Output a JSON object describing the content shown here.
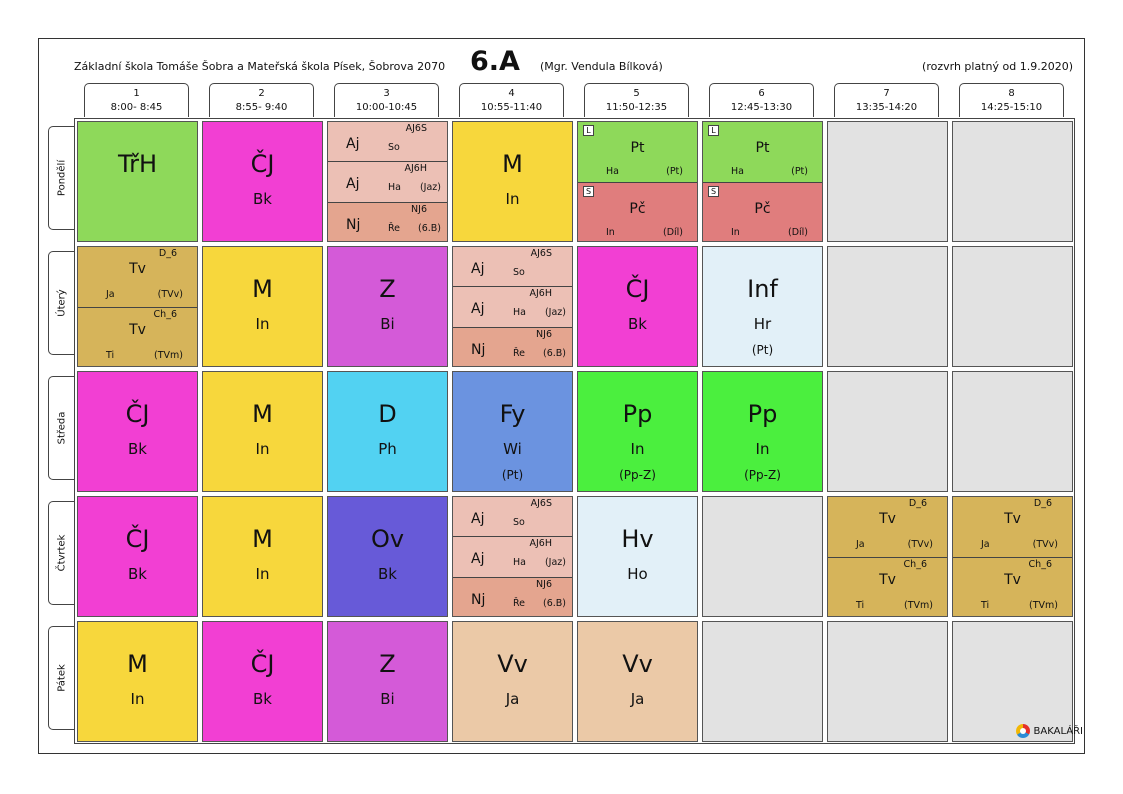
{
  "header": {
    "school": "Základní škola Tomáše Šobra a Mateřská škola Písek, Šobrova 2070",
    "class": "6.A",
    "teacher": "(Mgr. Vendula Bílková)",
    "valid": "(rozvrh platný od 1.9.2020)"
  },
  "periods": [
    {
      "num": "1",
      "time": "8:00- 8:45"
    },
    {
      "num": "2",
      "time": "8:55- 9:40"
    },
    {
      "num": "3",
      "time": "10:00-10:45"
    },
    {
      "num": "4",
      "time": "10:55-11:40"
    },
    {
      "num": "5",
      "time": "11:50-12:35"
    },
    {
      "num": "6",
      "time": "12:45-13:30"
    },
    {
      "num": "7",
      "time": "13:35-14:20"
    },
    {
      "num": "8",
      "time": "14:25-15:10"
    }
  ],
  "days": [
    "Pondělí",
    "Úterý",
    "Středa",
    "Čtvrtek",
    "Pátek"
  ],
  "lessons": [
    {
      "day": 0,
      "period": 0,
      "color": "#8ed95a",
      "subject": "TřH",
      "teacher": "",
      "room": ""
    },
    {
      "day": 0,
      "period": 1,
      "color": "#f23fd3",
      "subject": "ČJ",
      "teacher": "Bk",
      "room": ""
    },
    {
      "day": 0,
      "period": 2,
      "color": "#ecc0b5",
      "parts": [
        {
          "color": "#ecc0b5",
          "group": "AJ6S",
          "subject": "Aj",
          "teacher": "So",
          "room": ""
        },
        {
          "color": "#ecc0b5",
          "group": "AJ6H",
          "subject": "Aj",
          "teacher": "Ha",
          "room": "(Jaz)"
        },
        {
          "color": "#e4a58f",
          "group": "NJ6",
          "subject": "Nj",
          "teacher": "Ře",
          "room": "(6.B)"
        }
      ]
    },
    {
      "day": 0,
      "period": 3,
      "color": "#f7d73c",
      "subject": "M",
      "teacher": "In",
      "room": ""
    },
    {
      "day": 0,
      "period": 4,
      "color": "#8ed95a",
      "parts": [
        {
          "color": "#8ed95a",
          "box": "L",
          "group": "",
          "subject": "Pt",
          "teacher": "Ha",
          "room": "(Pt)"
        },
        {
          "color": "#e07d7d",
          "box": "S",
          "group": "",
          "subject": "Pč",
          "teacher": "In",
          "room": "(Díl)"
        }
      ]
    },
    {
      "day": 0,
      "period": 5,
      "color": "#8ed95a",
      "parts": [
        {
          "color": "#8ed95a",
          "box": "L",
          "group": "",
          "subject": "Pt",
          "teacher": "Ha",
          "room": "(Pt)"
        },
        {
          "color": "#e07d7d",
          "box": "S",
          "group": "",
          "subject": "Pč",
          "teacher": "In",
          "room": "(Díl)"
        }
      ]
    },
    {
      "day": 1,
      "period": 0,
      "color": "#d6b45a",
      "parts": [
        {
          "color": "#d6b45a",
          "group": "D_6",
          "subject": "Tv",
          "teacher": "Ja",
          "room": "(TVv)"
        },
        {
          "color": "#d6b45a",
          "group": "Ch_6",
          "subject": "Tv",
          "teacher": "Ti",
          "room": "(TVm)"
        }
      ]
    },
    {
      "day": 1,
      "period": 1,
      "color": "#f7d73c",
      "subject": "M",
      "teacher": "In",
      "room": ""
    },
    {
      "day": 1,
      "period": 2,
      "color": "#d45ad8",
      "subject": "Z",
      "teacher": "Bi",
      "room": ""
    },
    {
      "day": 1,
      "period": 3,
      "color": "#ecc0b5",
      "parts": [
        {
          "color": "#ecc0b5",
          "group": "AJ6S",
          "subject": "Aj",
          "teacher": "So",
          "room": ""
        },
        {
          "color": "#ecc0b5",
          "group": "AJ6H",
          "subject": "Aj",
          "teacher": "Ha",
          "room": "(Jaz)"
        },
        {
          "color": "#e4a58f",
          "group": "NJ6",
          "subject": "Nj",
          "teacher": "Ře",
          "room": "(6.B)"
        }
      ]
    },
    {
      "day": 1,
      "period": 4,
      "color": "#f23fd3",
      "subject": "ČJ",
      "teacher": "Bk",
      "room": ""
    },
    {
      "day": 1,
      "period": 5,
      "color": "#e2f0f8",
      "subject": "Inf",
      "teacher": "Hr",
      "room": "(Pt)"
    },
    {
      "day": 2,
      "period": 0,
      "color": "#f23fd3",
      "subject": "ČJ",
      "teacher": "Bk",
      "room": ""
    },
    {
      "day": 2,
      "period": 1,
      "color": "#f7d73c",
      "subject": "M",
      "teacher": "In",
      "room": ""
    },
    {
      "day": 2,
      "period": 2,
      "color": "#52d2f2",
      "subject": "D",
      "teacher": "Ph",
      "room": ""
    },
    {
      "day": 2,
      "period": 3,
      "color": "#6b93e0",
      "subject": "Fy",
      "teacher": "Wi",
      "room": "(Pt)"
    },
    {
      "day": 2,
      "period": 4,
      "color": "#4bef3e",
      "subject": "Pp",
      "teacher": "In",
      "room": "(Pp-Z)"
    },
    {
      "day": 2,
      "period": 5,
      "color": "#4bef3e",
      "subject": "Pp",
      "teacher": "In",
      "room": "(Pp-Z)"
    },
    {
      "day": 3,
      "period": 0,
      "color": "#f23fd3",
      "subject": "ČJ",
      "teacher": "Bk",
      "room": ""
    },
    {
      "day": 3,
      "period": 1,
      "color": "#f7d73c",
      "subject": "M",
      "teacher": "In",
      "room": ""
    },
    {
      "day": 3,
      "period": 2,
      "color": "#675ad8",
      "subject": "Ov",
      "teacher": "Bk",
      "room": ""
    },
    {
      "day": 3,
      "period": 3,
      "color": "#ecc0b5",
      "parts": [
        {
          "color": "#ecc0b5",
          "group": "AJ6S",
          "subject": "Aj",
          "teacher": "So",
          "room": ""
        },
        {
          "color": "#ecc0b5",
          "group": "AJ6H",
          "subject": "Aj",
          "teacher": "Ha",
          "room": "(Jaz)"
        },
        {
          "color": "#e4a58f",
          "group": "NJ6",
          "subject": "Nj",
          "teacher": "Ře",
          "room": "(6.B)"
        }
      ]
    },
    {
      "day": 3,
      "period": 4,
      "color": "#e2f0f8",
      "subject": "Hv",
      "teacher": "Ho",
      "room": ""
    },
    {
      "day": 3,
      "period": 6,
      "color": "#d6b45a",
      "parts": [
        {
          "color": "#d6b45a",
          "group": "D_6",
          "subject": "Tv",
          "teacher": "Ja",
          "room": "(TVv)"
        },
        {
          "color": "#d6b45a",
          "group": "Ch_6",
          "subject": "Tv",
          "teacher": "Ti",
          "room": "(TVm)"
        }
      ]
    },
    {
      "day": 3,
      "period": 7,
      "color": "#d6b45a",
      "parts": [
        {
          "color": "#d6b45a",
          "group": "D_6",
          "subject": "Tv",
          "teacher": "Ja",
          "room": "(TVv)"
        },
        {
          "color": "#d6b45a",
          "group": "Ch_6",
          "subject": "Tv",
          "teacher": "Ti",
          "room": "(TVm)"
        }
      ]
    },
    {
      "day": 4,
      "period": 0,
      "color": "#f7d73c",
      "subject": "M",
      "teacher": "In",
      "room": ""
    },
    {
      "day": 4,
      "period": 1,
      "color": "#f23fd3",
      "subject": "ČJ",
      "teacher": "Bk",
      "room": ""
    },
    {
      "day": 4,
      "period": 2,
      "color": "#d45ad8",
      "subject": "Z",
      "teacher": "Bi",
      "room": ""
    },
    {
      "day": 4,
      "period": 3,
      "color": "#ebc9a7",
      "subject": "Vv",
      "teacher": "Ja",
      "room": ""
    },
    {
      "day": 4,
      "period": 4,
      "color": "#ebc9a7",
      "subject": "Vv",
      "teacher": "Ja",
      "room": ""
    }
  ],
  "brand": {
    "label": "BAKALÁŘI",
    "icon": "bakalari-logo-icon"
  }
}
